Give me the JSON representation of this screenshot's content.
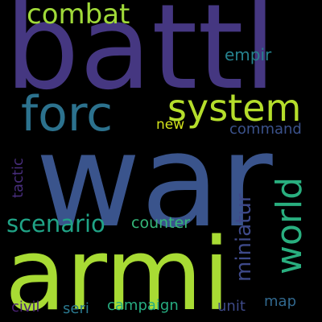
{
  "words": {
    "battl": {
      "text": "battl",
      "color": "#453781"
    },
    "war": {
      "text": "war",
      "color": "#3a548c"
    },
    "armi": {
      "text": "armi",
      "color": "#a8db34"
    },
    "forc": {
      "text": "forc",
      "color": "#2c728e"
    },
    "system": {
      "text": "system",
      "color": "#b5de2b"
    },
    "combat": {
      "text": "combat",
      "color": "#a0da39"
    },
    "world": {
      "text": "world",
      "color": "#29af7f"
    },
    "scenario": {
      "text": "scenario",
      "color": "#20a386"
    },
    "miniatur": {
      "text": "miniatur",
      "color": "#3e4989"
    },
    "counter": {
      "text": "counter",
      "color": "#35b779"
    },
    "empir": {
      "text": "empir",
      "color": "#26828e"
    },
    "new": {
      "text": "new",
      "color": "#d2e21b"
    },
    "command": {
      "text": "command",
      "color": "#3b528b"
    },
    "tactic": {
      "text": "tactic",
      "color": "#472d7b"
    },
    "civil": {
      "text": "civil",
      "color": "#482173"
    },
    "seri": {
      "text": "seri",
      "color": "#2a788e"
    },
    "campaign": {
      "text": "campaign",
      "color": "#27ad81"
    },
    "unit": {
      "text": "unit",
      "color": "#3e4a89"
    },
    "map": {
      "text": "map",
      "color": "#31688e"
    }
  }
}
